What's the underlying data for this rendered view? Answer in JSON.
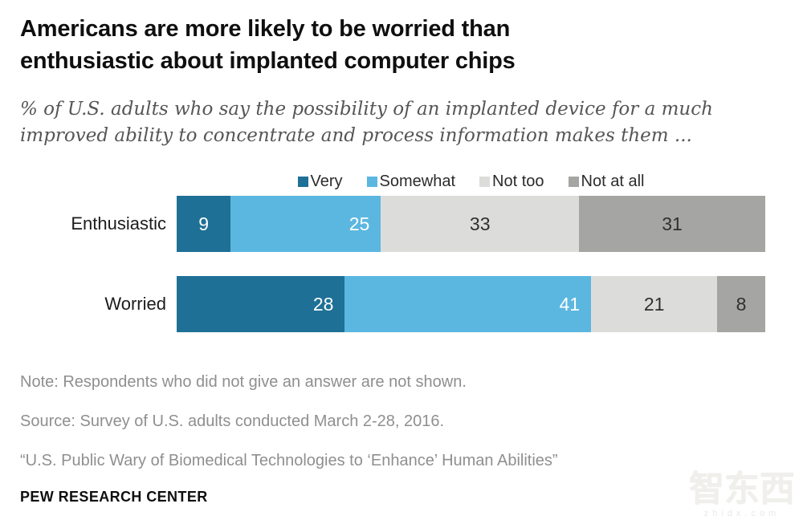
{
  "header": {
    "title_lines": [
      "Americans are more likely to be worried than",
      "enthusiastic about implanted computer chips"
    ],
    "subtitle_lines": [
      "% of U.S. adults who say the possibility of an implanted device for a much",
      "improved ability to concentrate and process information makes them ..."
    ]
  },
  "chart_data": {
    "type": "bar",
    "orientation": "horizontal-stacked",
    "title": "Americans are more likely to be worried than enthusiastic about implanted computer chips",
    "subtitle": "% of U.S. adults who say the possibility of an implanted device for a much improved ability to concentrate and process information makes them ...",
    "categories": [
      "Enthusiastic",
      "Worried"
    ],
    "series": [
      {
        "name": "Very",
        "color": "#1f7096",
        "label_color": "#ffffff",
        "label_align": "end",
        "values": [
          9,
          28
        ]
      },
      {
        "name": "Somewhat",
        "color": "#5bb7e0",
        "label_color": "#ffffff",
        "label_align": "end",
        "values": [
          25,
          41
        ]
      },
      {
        "name": "Not too",
        "color": "#dcdcda",
        "label_color": "#303030",
        "label_align": "center",
        "values": [
          33,
          21
        ]
      },
      {
        "name": "Not at all",
        "color": "#a5a5a3",
        "label_color": "#303030",
        "label_align": "center",
        "values": [
          31,
          8
        ]
      }
    ],
    "row_totals_shown": [
      98,
      98
    ],
    "xlim": [
      0,
      98
    ],
    "grid": false,
    "legend_position": "top",
    "data_labels": true
  },
  "footer": {
    "note": "Note: Respondents who did not give an answer are not shown.",
    "source": "Source: Survey of U.S. adults conducted March 2-28, 2016.",
    "report": "“U.S. Public Wary of Biomedical Technologies to ‘Enhance’ Human Abilities”",
    "brand": "PEW RESEARCH CENTER"
  },
  "watermark": {
    "logo_text": "智东西",
    "domain_text": "zhidx.com"
  }
}
